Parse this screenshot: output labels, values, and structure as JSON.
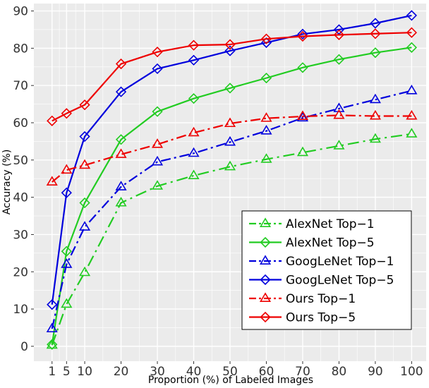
{
  "chart_data": {
    "type": "line",
    "title": "",
    "xlabel": "Proportion (%) of Labeled Images",
    "ylabel": "Accuracy (%)",
    "x": [
      1,
      5,
      10,
      20,
      30,
      40,
      50,
      60,
      70,
      80,
      90,
      100
    ],
    "x_ticks": [
      "1",
      "5",
      "10",
      "20",
      "30",
      "40",
      "50",
      "60",
      "70",
      "80",
      "90",
      "100"
    ],
    "xlim": [
      -4,
      104
    ],
    "ylim": [
      -4,
      92
    ],
    "y_ticks": [
      "0",
      "10",
      "20",
      "30",
      "40",
      "50",
      "60",
      "70",
      "80",
      "90"
    ],
    "grid": true,
    "legend_position": "bottom-right",
    "series": [
      {
        "name": "AlexNet Top−1",
        "color": "#22cc22",
        "marker": "triangle",
        "line": "dash-dot-long",
        "values": [
          0.3,
          11.3,
          19.8,
          38.5,
          43.0,
          45.8,
          48.2,
          50.2,
          52.0,
          53.8,
          55.6,
          57.0
        ]
      },
      {
        "name": "AlexNet Top−5",
        "color": "#22cc22",
        "marker": "diamond",
        "line": "solid",
        "values": [
          0.5,
          25.5,
          38.5,
          55.5,
          63.0,
          66.5,
          69.3,
          72.0,
          74.8,
          77.0,
          78.8,
          80.2
        ]
      },
      {
        "name": "GoogLeNet Top−1",
        "color": "#0000dd",
        "marker": "triangle",
        "line": "dash-dot",
        "values": [
          4.7,
          22.0,
          32.0,
          42.8,
          49.5,
          51.8,
          54.8,
          57.8,
          61.3,
          63.8,
          66.2,
          68.6
        ]
      },
      {
        "name": "GoogLeNet Top−5",
        "color": "#0000dd",
        "marker": "diamond",
        "line": "solid",
        "values": [
          11.2,
          41.2,
          56.3,
          68.3,
          74.5,
          76.8,
          79.3,
          81.5,
          83.8,
          85.0,
          86.7,
          88.8
        ]
      },
      {
        "name": "Ours Top−1",
        "color": "#ee0000",
        "marker": "triangle",
        "line": "dash-dot",
        "values": [
          44.1,
          47.3,
          48.6,
          51.5,
          54.2,
          57.3,
          59.8,
          61.2,
          61.7,
          62.0,
          61.8,
          61.8
        ]
      },
      {
        "name": "Ours Top−5",
        "color": "#ee0000",
        "marker": "diamond",
        "line": "solid",
        "values": [
          60.5,
          62.5,
          64.8,
          75.8,
          79.0,
          80.8,
          81.0,
          82.5,
          83.2,
          83.6,
          83.9,
          84.2
        ]
      }
    ],
    "colors": {
      "panel": "#ebebeb",
      "grid": "#ffffff",
      "legend_bg": "#ffffff",
      "legend_border": "#000000"
    }
  }
}
